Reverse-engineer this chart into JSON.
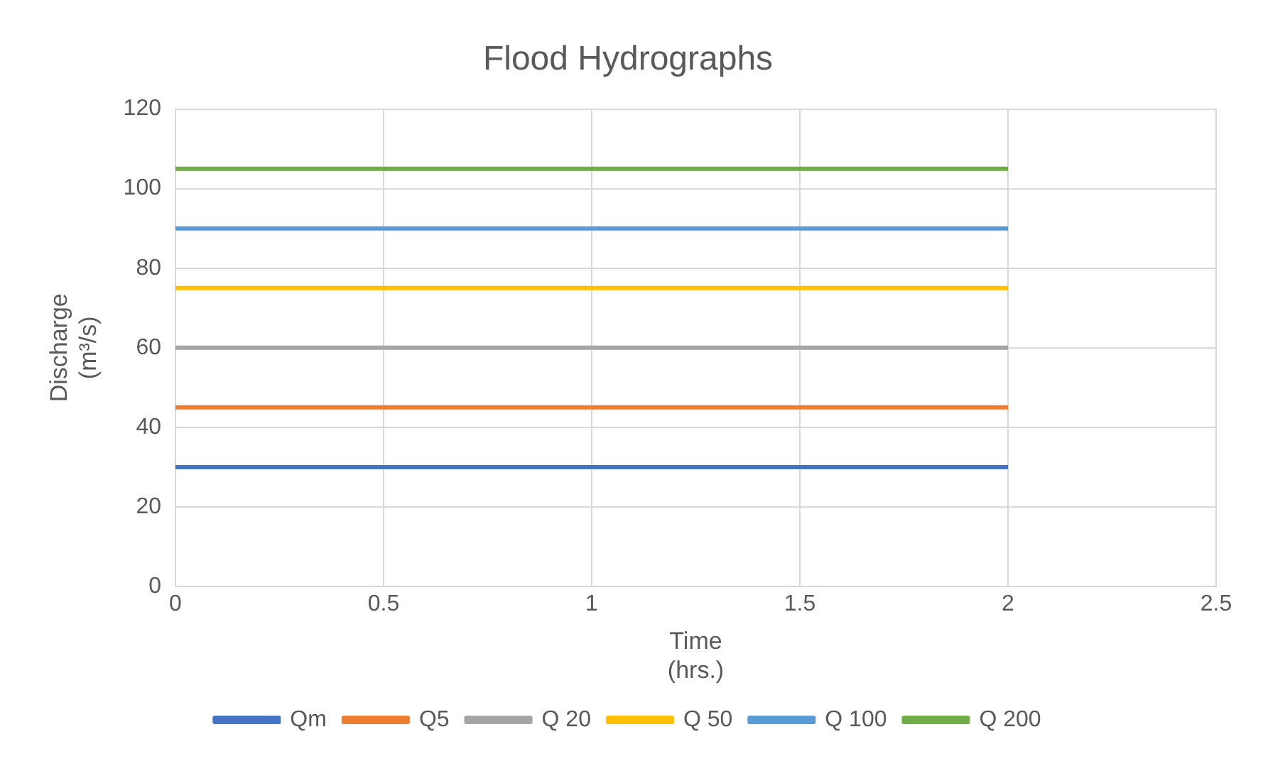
{
  "chart_data": {
    "type": "line",
    "title": "Flood Hydrographs",
    "xlabel": "Time\n(hrs.)",
    "ylabel": "Discharge\n(m³/s)",
    "x": [
      0,
      2
    ],
    "series": [
      {
        "name": "Qm",
        "color": "#4472c4",
        "values": [
          30,
          30
        ]
      },
      {
        "name": "Q5",
        "color": "#ed7d31",
        "values": [
          45,
          45
        ]
      },
      {
        "name": "Q 20",
        "color": "#a5a5a5",
        "values": [
          60,
          60
        ]
      },
      {
        "name": "Q 50",
        "color": "#ffc000",
        "values": [
          75,
          75
        ]
      },
      {
        "name": "Q 100",
        "color": "#5b9bd5",
        "values": [
          90,
          90
        ]
      },
      {
        "name": "Q 200",
        "color": "#70ad47",
        "values": [
          105,
          105
        ]
      }
    ],
    "xlim": [
      0,
      2.5
    ],
    "xticks": [
      0,
      0.5,
      1,
      1.5,
      2,
      2.5
    ],
    "ylim": [
      0,
      120
    ],
    "yticks": [
      0,
      20,
      40,
      60,
      80,
      100,
      120
    ],
    "grid": true,
    "legend": "bottom",
    "marker": "none",
    "line_style": "solid"
  }
}
